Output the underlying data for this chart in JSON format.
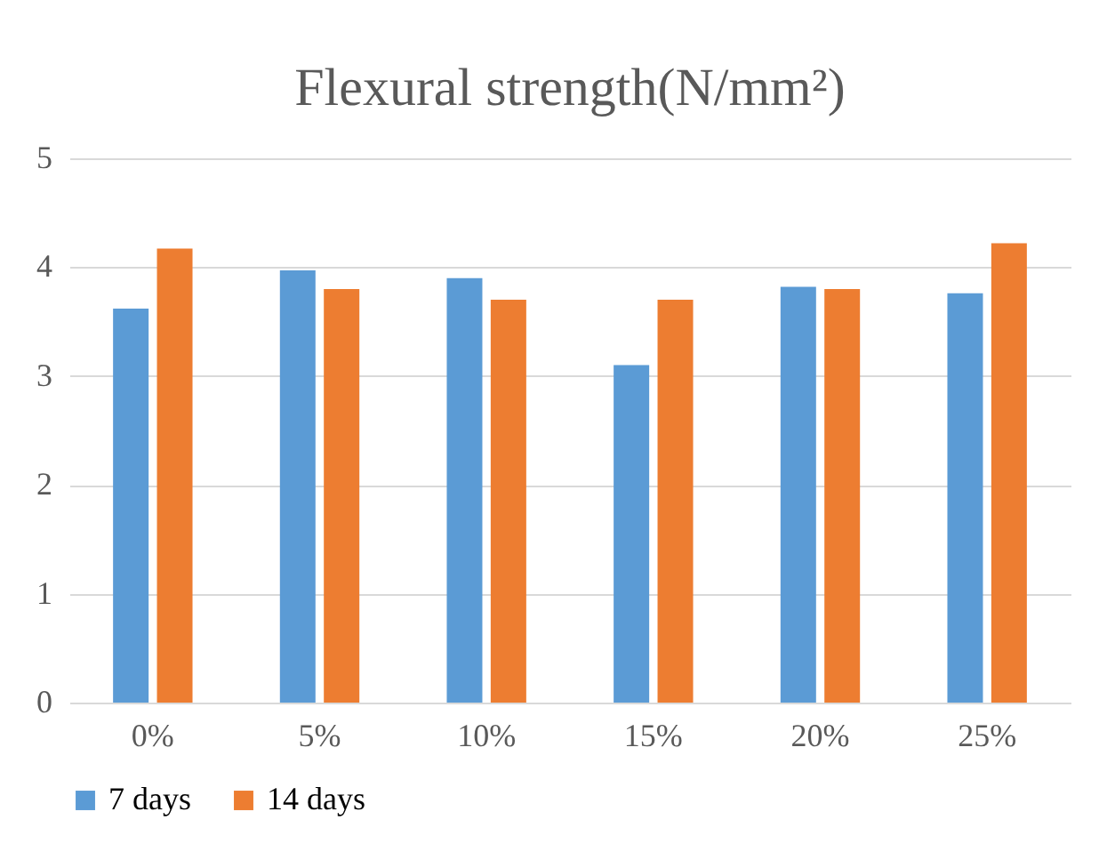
{
  "chart_data": {
    "type": "bar",
    "title": "Flexural strength(N/mm²)",
    "categories": [
      "0%",
      "5%",
      "10%",
      "15%",
      "20%",
      "25%"
    ],
    "series": [
      {
        "name": "7 days",
        "color": "#5b9bd5",
        "values": [
          3.62,
          3.97,
          3.9,
          3.1,
          3.82,
          3.76
        ]
      },
      {
        "name": "14 days",
        "color": "#ed7d31",
        "values": [
          4.17,
          3.8,
          3.7,
          3.7,
          3.8,
          4.22
        ]
      }
    ],
    "ylim": [
      0,
      5
    ],
    "yticks": [
      0,
      1,
      2,
      3,
      4,
      5
    ],
    "grid": "y",
    "legend": "bottom"
  }
}
